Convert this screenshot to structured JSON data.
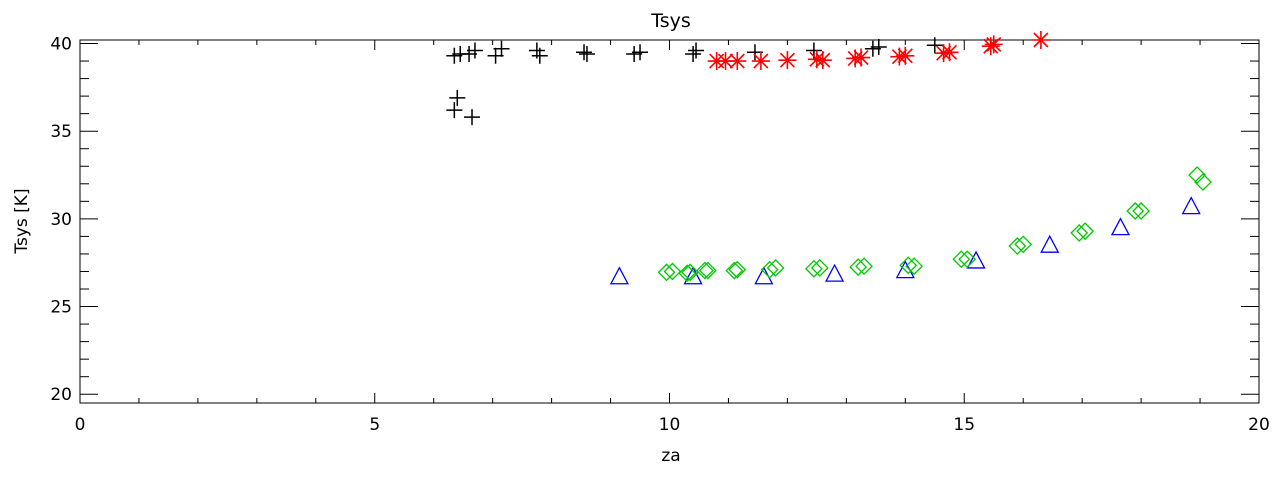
{
  "chart_data": {
    "type": "scatter",
    "title": "Tsys",
    "xlabel": "za",
    "ylabel": "Tsys [K]",
    "xlim": [
      0,
      20
    ],
    "ylim": [
      19.5,
      40.2
    ],
    "xticks": [
      0,
      5,
      10,
      15,
      20
    ],
    "yticks": [
      20,
      25,
      30,
      35,
      40
    ],
    "grid": false,
    "series": [
      {
        "marker": "plus",
        "color": "#000000",
        "points": [
          [
            6.35,
            36.2
          ],
          [
            6.4,
            36.9
          ],
          [
            6.65,
            35.8
          ],
          [
            6.35,
            39.3
          ],
          [
            6.45,
            39.4
          ],
          [
            6.6,
            39.4
          ],
          [
            6.7,
            39.6
          ],
          [
            7.05,
            39.3
          ],
          [
            7.15,
            39.7
          ],
          [
            7.75,
            39.6
          ],
          [
            7.8,
            39.3
          ],
          [
            8.55,
            39.5
          ],
          [
            8.6,
            39.4
          ],
          [
            9.4,
            39.4
          ],
          [
            9.5,
            39.5
          ],
          [
            10.4,
            39.4
          ],
          [
            10.45,
            39.6
          ],
          [
            11.45,
            39.5
          ],
          [
            12.45,
            39.6
          ],
          [
            13.45,
            39.7
          ],
          [
            13.55,
            39.8
          ],
          [
            14.5,
            39.9
          ]
        ]
      },
      {
        "marker": "asterisk",
        "color": "#ff0000",
        "points": [
          [
            10.8,
            39.0
          ],
          [
            10.95,
            39.0
          ],
          [
            11.15,
            39.0
          ],
          [
            11.55,
            39.0
          ],
          [
            12.0,
            39.05
          ],
          [
            12.5,
            39.1
          ],
          [
            12.6,
            39.05
          ],
          [
            13.15,
            39.15
          ],
          [
            13.25,
            39.2
          ],
          [
            13.9,
            39.25
          ],
          [
            14.0,
            39.3
          ],
          [
            14.65,
            39.45
          ],
          [
            14.75,
            39.5
          ],
          [
            15.45,
            39.85
          ],
          [
            15.5,
            39.95
          ],
          [
            16.3,
            40.2
          ]
        ]
      },
      {
        "marker": "triangle",
        "color": "#0000ff",
        "points": [
          [
            9.15,
            26.7
          ],
          [
            10.4,
            26.7
          ],
          [
            11.6,
            26.7
          ],
          [
            12.8,
            26.85
          ],
          [
            14.0,
            27.05
          ],
          [
            15.2,
            27.6
          ],
          [
            16.45,
            28.5
          ],
          [
            17.65,
            29.5
          ],
          [
            18.85,
            30.7
          ]
        ]
      },
      {
        "marker": "diamond",
        "color": "#00c800",
        "points": [
          [
            9.95,
            26.95
          ],
          [
            10.05,
            27.0
          ],
          [
            10.3,
            26.9
          ],
          [
            10.35,
            26.95
          ],
          [
            10.6,
            27.05
          ],
          [
            10.65,
            27.05
          ],
          [
            11.1,
            27.05
          ],
          [
            11.15,
            27.1
          ],
          [
            11.7,
            27.1
          ],
          [
            11.8,
            27.2
          ],
          [
            12.45,
            27.15
          ],
          [
            12.55,
            27.2
          ],
          [
            13.2,
            27.25
          ],
          [
            13.3,
            27.3
          ],
          [
            14.05,
            27.35
          ],
          [
            14.15,
            27.3
          ],
          [
            14.95,
            27.7
          ],
          [
            15.05,
            27.7
          ],
          [
            15.9,
            28.45
          ],
          [
            16.0,
            28.55
          ],
          [
            16.95,
            29.2
          ],
          [
            17.05,
            29.3
          ],
          [
            17.9,
            30.45
          ],
          [
            18.0,
            30.45
          ],
          [
            18.95,
            32.5
          ],
          [
            19.05,
            32.1
          ]
        ]
      }
    ]
  }
}
